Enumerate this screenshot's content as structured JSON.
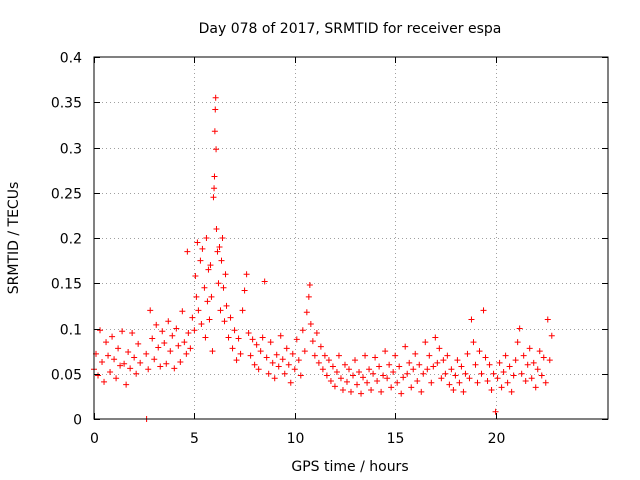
{
  "chart_data": {
    "type": "scatter",
    "title": "Day 078 of 2017, SRMTID for receiver espa",
    "xlabel": "GPS time / hours",
    "ylabel": "SRMTID / TECUs",
    "xlim": [
      0,
      25.6
    ],
    "ylim": [
      0,
      0.4
    ],
    "grid": true,
    "marker": "+",
    "color": "#ff0000",
    "x_ticks": [
      {
        "value": 0,
        "label": "0"
      },
      {
        "value": 5,
        "label": "5"
      },
      {
        "value": 10,
        "label": "10"
      },
      {
        "value": 15,
        "label": "15"
      },
      {
        "value": 20,
        "label": "20"
      }
    ],
    "y_ticks": [
      {
        "value": 0,
        "label": "0"
      },
      {
        "value": 0.05,
        "label": "0.05"
      },
      {
        "value": 0.1,
        "label": "0.1"
      },
      {
        "value": 0.15,
        "label": "0.15"
      },
      {
        "value": 0.2,
        "label": "0.2"
      },
      {
        "value": 0.25,
        "label": "0.25"
      },
      {
        "value": 0.3,
        "label": "0.3"
      },
      {
        "value": 0.35,
        "label": "0.35"
      },
      {
        "value": 0.4,
        "label": "0.4"
      }
    ],
    "series": [
      {
        "name": "SRMTID",
        "points": [
          [
            0.0,
            0.055
          ],
          [
            0.1,
            0.072
          ],
          [
            0.2,
            0.048
          ],
          [
            0.3,
            0.098
          ],
          [
            0.4,
            0.063
          ],
          [
            0.5,
            0.041
          ],
          [
            0.6,
            0.085
          ],
          [
            0.7,
            0.07
          ],
          [
            0.8,
            0.052
          ],
          [
            0.9,
            0.091
          ],
          [
            1.0,
            0.066
          ],
          [
            1.1,
            0.045
          ],
          [
            1.2,
            0.078
          ],
          [
            1.3,
            0.059
          ],
          [
            1.4,
            0.097
          ],
          [
            1.5,
            0.061
          ],
          [
            1.6,
            0.038
          ],
          [
            1.7,
            0.074
          ],
          [
            1.8,
            0.056
          ],
          [
            1.9,
            0.095
          ],
          [
            2.0,
            0.068
          ],
          [
            2.1,
            0.05
          ],
          [
            2.2,
            0.083
          ],
          [
            2.3,
            0.062
          ],
          [
            2.62,
            0.0
          ],
          [
            2.6,
            0.072
          ],
          [
            2.7,
            0.055
          ],
          [
            2.8,
            0.12
          ],
          [
            2.9,
            0.089
          ],
          [
            3.0,
            0.066
          ],
          [
            3.1,
            0.104
          ],
          [
            3.2,
            0.079
          ],
          [
            3.3,
            0.058
          ],
          [
            3.4,
            0.097
          ],
          [
            3.5,
            0.084
          ],
          [
            3.6,
            0.061
          ],
          [
            3.7,
            0.108
          ],
          [
            3.8,
            0.075
          ],
          [
            3.9,
            0.092
          ],
          [
            4.0,
            0.056
          ],
          [
            4.1,
            0.1
          ],
          [
            4.2,
            0.081
          ],
          [
            4.3,
            0.063
          ],
          [
            4.4,
            0.119
          ],
          [
            4.5,
            0.085
          ],
          [
            4.6,
            0.072
          ],
          [
            4.65,
            0.185
          ],
          [
            4.7,
            0.095
          ],
          [
            4.8,
            0.078
          ],
          [
            4.9,
            0.112
          ],
          [
            5.0,
            0.098
          ],
          [
            5.05,
            0.158
          ],
          [
            5.1,
            0.135
          ],
          [
            5.15,
            0.195
          ],
          [
            5.2,
            0.12
          ],
          [
            5.3,
            0.175
          ],
          [
            5.35,
            0.105
          ],
          [
            5.4,
            0.188
          ],
          [
            5.5,
            0.145
          ],
          [
            5.55,
            0.09
          ],
          [
            5.6,
            0.2
          ],
          [
            5.65,
            0.13
          ],
          [
            5.7,
            0.165
          ],
          [
            5.75,
            0.11
          ],
          [
            5.8,
            0.17
          ],
          [
            5.85,
            0.135
          ],
          [
            5.9,
            0.075
          ],
          [
            5.95,
            0.245
          ],
          [
            5.98,
            0.255
          ],
          [
            6.0,
            0.268
          ],
          [
            6.02,
            0.318
          ],
          [
            6.04,
            0.342
          ],
          [
            6.06,
            0.355
          ],
          [
            6.08,
            0.298
          ],
          [
            6.1,
            0.21
          ],
          [
            6.15,
            0.185
          ],
          [
            6.2,
            0.15
          ],
          [
            6.25,
            0.19
          ],
          [
            6.3,
            0.12
          ],
          [
            6.35,
            0.175
          ],
          [
            6.4,
            0.2
          ],
          [
            6.45,
            0.145
          ],
          [
            6.5,
            0.108
          ],
          [
            6.55,
            0.16
          ],
          [
            6.6,
            0.125
          ],
          [
            6.7,
            0.09
          ],
          [
            6.8,
            0.112
          ],
          [
            6.9,
            0.078
          ],
          [
            7.0,
            0.098
          ],
          [
            7.1,
            0.065
          ],
          [
            7.2,
            0.089
          ],
          [
            7.3,
            0.072
          ],
          [
            7.4,
            0.12
          ],
          [
            7.5,
            0.142
          ],
          [
            7.6,
            0.16
          ],
          [
            7.7,
            0.095
          ],
          [
            7.8,
            0.07
          ],
          [
            7.9,
            0.088
          ],
          [
            8.0,
            0.06
          ],
          [
            8.1,
            0.082
          ],
          [
            8.2,
            0.055
          ],
          [
            8.3,
            0.075
          ],
          [
            8.4,
            0.09
          ],
          [
            8.5,
            0.152
          ],
          [
            8.6,
            0.068
          ],
          [
            8.7,
            0.05
          ],
          [
            8.8,
            0.085
          ],
          [
            8.9,
            0.062
          ],
          [
            9.0,
            0.045
          ],
          [
            9.1,
            0.071
          ],
          [
            9.2,
            0.058
          ],
          [
            9.3,
            0.092
          ],
          [
            9.4,
            0.066
          ],
          [
            9.5,
            0.05
          ],
          [
            9.6,
            0.078
          ],
          [
            9.7,
            0.06
          ],
          [
            9.8,
            0.04
          ],
          [
            9.9,
            0.072
          ],
          [
            10.0,
            0.055
          ],
          [
            10.1,
            0.088
          ],
          [
            10.2,
            0.065
          ],
          [
            10.3,
            0.048
          ],
          [
            10.4,
            0.098
          ],
          [
            10.5,
            0.075
          ],
          [
            10.6,
            0.118
          ],
          [
            10.7,
            0.135
          ],
          [
            10.75,
            0.148
          ],
          [
            10.8,
            0.105
          ],
          [
            10.9,
            0.086
          ],
          [
            11.0,
            0.07
          ],
          [
            11.1,
            0.095
          ],
          [
            11.2,
            0.062
          ],
          [
            11.3,
            0.08
          ],
          [
            11.4,
            0.055
          ],
          [
            11.5,
            0.07
          ],
          [
            11.6,
            0.048
          ],
          [
            11.7,
            0.065
          ],
          [
            11.8,
            0.042
          ],
          [
            11.9,
            0.058
          ],
          [
            12.0,
            0.036
          ],
          [
            12.1,
            0.052
          ],
          [
            12.2,
            0.07
          ],
          [
            12.3,
            0.045
          ],
          [
            12.4,
            0.032
          ],
          [
            12.5,
            0.06
          ],
          [
            12.6,
            0.041
          ],
          [
            12.7,
            0.055
          ],
          [
            12.8,
            0.03
          ],
          [
            12.9,
            0.048
          ],
          [
            13.0,
            0.065
          ],
          [
            13.1,
            0.038
          ],
          [
            13.2,
            0.052
          ],
          [
            13.3,
            0.028
          ],
          [
            13.4,
            0.046
          ],
          [
            13.5,
            0.07
          ],
          [
            13.6,
            0.04
          ],
          [
            13.7,
            0.055
          ],
          [
            13.8,
            0.032
          ],
          [
            13.9,
            0.05
          ],
          [
            14.0,
            0.068
          ],
          [
            14.1,
            0.042
          ],
          [
            14.2,
            0.058
          ],
          [
            14.3,
            0.03
          ],
          [
            14.4,
            0.048
          ],
          [
            14.5,
            0.075
          ],
          [
            14.6,
            0.045
          ],
          [
            14.7,
            0.06
          ],
          [
            14.8,
            0.035
          ],
          [
            14.9,
            0.052
          ],
          [
            15.0,
            0.07
          ],
          [
            15.1,
            0.04
          ],
          [
            15.2,
            0.058
          ],
          [
            15.3,
            0.028
          ],
          [
            15.4,
            0.046
          ],
          [
            15.5,
            0.08
          ],
          [
            15.6,
            0.05
          ],
          [
            15.7,
            0.062
          ],
          [
            15.8,
            0.035
          ],
          [
            15.9,
            0.055
          ],
          [
            16.0,
            0.072
          ],
          [
            16.1,
            0.042
          ],
          [
            16.2,
            0.06
          ],
          [
            16.3,
            0.03
          ],
          [
            16.4,
            0.05
          ],
          [
            16.5,
            0.085
          ],
          [
            16.6,
            0.055
          ],
          [
            16.7,
            0.07
          ],
          [
            16.8,
            0.04
          ],
          [
            16.9,
            0.058
          ],
          [
            17.0,
            0.09
          ],
          [
            17.1,
            0.062
          ],
          [
            17.2,
            0.078
          ],
          [
            17.3,
            0.045
          ],
          [
            17.4,
            0.065
          ],
          [
            17.5,
            0.05
          ],
          [
            17.6,
            0.07
          ],
          [
            17.7,
            0.038
          ],
          [
            17.8,
            0.055
          ],
          [
            17.9,
            0.032
          ],
          [
            18.0,
            0.048
          ],
          [
            18.1,
            0.065
          ],
          [
            18.2,
            0.04
          ],
          [
            18.3,
            0.058
          ],
          [
            18.4,
            0.03
          ],
          [
            18.5,
            0.05
          ],
          [
            18.6,
            0.072
          ],
          [
            18.7,
            0.045
          ],
          [
            18.8,
            0.11
          ],
          [
            18.9,
            0.085
          ],
          [
            19.0,
            0.06
          ],
          [
            19.1,
            0.04
          ],
          [
            19.2,
            0.075
          ],
          [
            19.3,
            0.05
          ],
          [
            19.4,
            0.12
          ],
          [
            19.5,
            0.068
          ],
          [
            19.6,
            0.042
          ],
          [
            19.7,
            0.06
          ],
          [
            19.8,
            0.032
          ],
          [
            19.9,
            0.05
          ],
          [
            20.0,
            0.008
          ],
          [
            20.1,
            0.045
          ],
          [
            20.2,
            0.062
          ],
          [
            20.3,
            0.035
          ],
          [
            20.4,
            0.052
          ],
          [
            20.5,
            0.07
          ],
          [
            20.6,
            0.04
          ],
          [
            20.7,
            0.058
          ],
          [
            20.8,
            0.03
          ],
          [
            20.9,
            0.048
          ],
          [
            21.0,
            0.065
          ],
          [
            21.1,
            0.085
          ],
          [
            21.2,
            0.1
          ],
          [
            21.3,
            0.05
          ],
          [
            21.4,
            0.07
          ],
          [
            21.5,
            0.042
          ],
          [
            21.6,
            0.06
          ],
          [
            21.7,
            0.078
          ],
          [
            21.8,
            0.045
          ],
          [
            21.9,
            0.062
          ],
          [
            22.0,
            0.035
          ],
          [
            22.1,
            0.055
          ],
          [
            22.2,
            0.075
          ],
          [
            22.3,
            0.048
          ],
          [
            22.4,
            0.068
          ],
          [
            22.5,
            0.04
          ],
          [
            22.6,
            0.11
          ],
          [
            22.7,
            0.065
          ],
          [
            22.8,
            0.092
          ]
        ]
      }
    ]
  }
}
